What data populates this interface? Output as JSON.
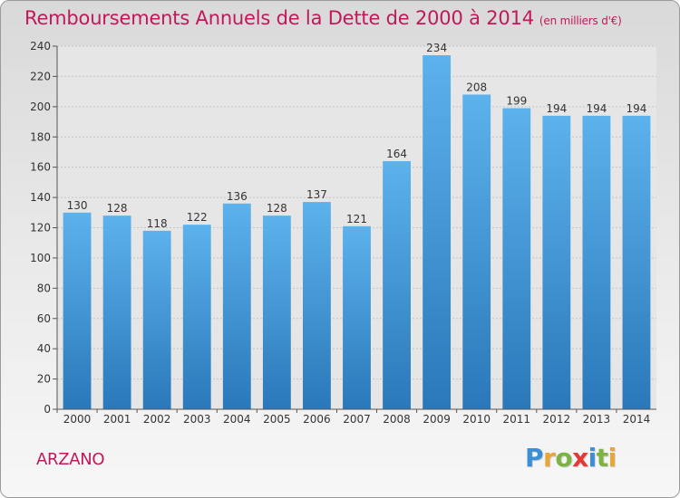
{
  "header": {
    "title": "Remboursements Annuels de la Dette de 2000 à 2014",
    "unit": "(en milliers d'€)"
  },
  "commune": "ARZANO",
  "logo": {
    "text": "Proxiti",
    "letters": [
      "P",
      "r",
      "o",
      "x",
      "i",
      "t",
      "i"
    ],
    "colors": [
      "#3a8fd6",
      "#e8a53a",
      "#7cb342",
      "#e53935",
      "#3a8fd6",
      "#7cb342",
      "#e8a53a"
    ]
  },
  "colors": {
    "title": "#c2185b",
    "bar_light": "#5aaee9",
    "bar_dark": "#2b7bbd",
    "grid": "#c8c8c8"
  },
  "chart_data": {
    "type": "bar",
    "title": "Remboursements Annuels de la Dette de 2000 à 2014",
    "xlabel": "",
    "ylabel": "",
    "categories": [
      "2000",
      "2001",
      "2002",
      "2003",
      "2004",
      "2005",
      "2006",
      "2007",
      "2008",
      "2009",
      "2010",
      "2011",
      "2012",
      "2013",
      "2014"
    ],
    "values": [
      130,
      128,
      118,
      122,
      136,
      128,
      137,
      121,
      164,
      234,
      208,
      199,
      194,
      194,
      194
    ],
    "ylim": [
      0,
      240
    ],
    "yticks": [
      0,
      20,
      40,
      60,
      80,
      100,
      120,
      140,
      160,
      180,
      200,
      220,
      240
    ],
    "grid": true
  }
}
